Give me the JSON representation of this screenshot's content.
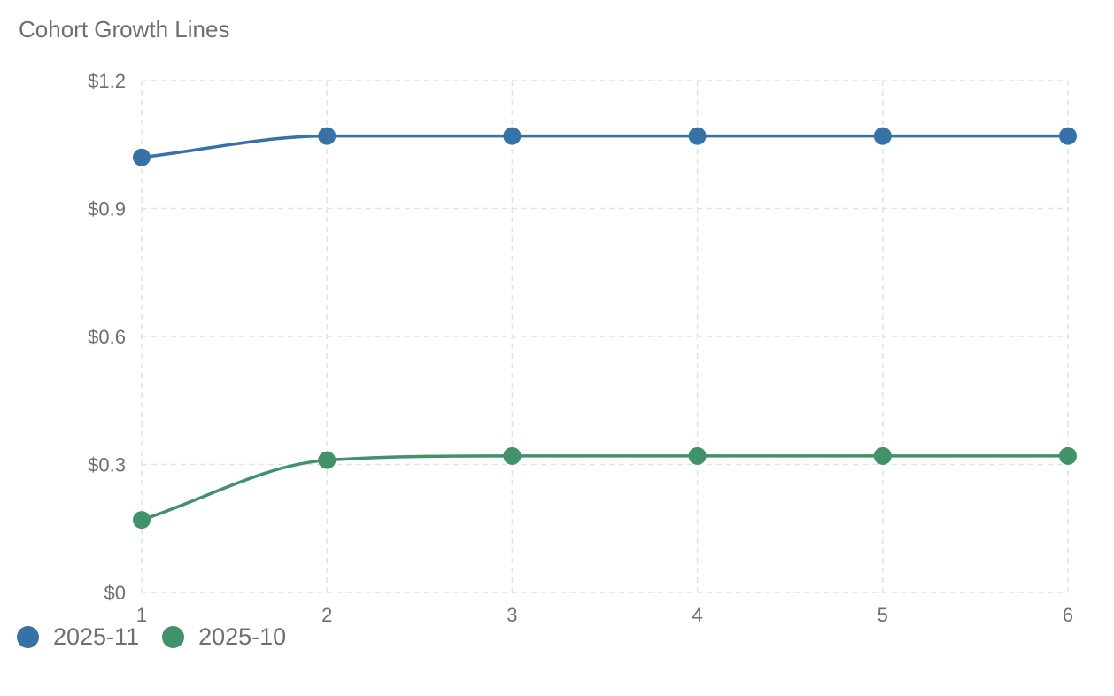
{
  "chart_data": {
    "type": "line",
    "title": "Cohort Growth Lines",
    "xlabel": "",
    "ylabel": "",
    "x": [
      1,
      2,
      3,
      4,
      5,
      6
    ],
    "x_tick_labels": [
      "1",
      "2",
      "3",
      "4",
      "5",
      "6"
    ],
    "y_ticks": [
      0,
      0.3,
      0.6,
      0.9,
      1.2
    ],
    "y_tick_labels": [
      "$0",
      "$0.3",
      "$0.6",
      "$0.9",
      "$1.2"
    ],
    "ylim": [
      0,
      1.2
    ],
    "xlim": [
      1,
      6
    ],
    "grid": true,
    "legend_position": "bottom-left",
    "series": [
      {
        "name": "2025-11",
        "color": "#3572a8",
        "values": [
          1.02,
          1.07,
          1.07,
          1.07,
          1.07,
          1.07
        ]
      },
      {
        "name": "2025-10",
        "color": "#41916a",
        "values": [
          0.17,
          0.31,
          0.32,
          0.32,
          0.32,
          0.32
        ]
      }
    ]
  }
}
